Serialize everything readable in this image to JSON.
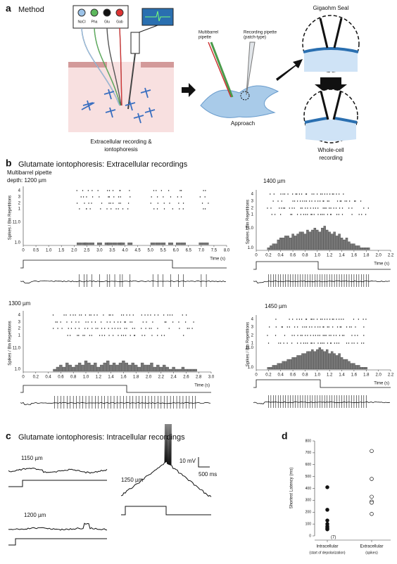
{
  "panel_a": {
    "letter": "a",
    "title": "Method",
    "barrels": [
      "NaCl",
      "Pha",
      "Glu",
      "Gab"
    ],
    "caption": [
      "Extracellular recording &",
      "iontophoresis"
    ],
    "multibarrel": [
      "Multibarrel",
      "pipette"
    ],
    "recording": [
      "Recording pipette",
      "(patch-type)"
    ],
    "approach": "Approach",
    "seal": "Gigaohm Seal",
    "whole_cell": [
      "Whole-cell",
      "recording"
    ]
  },
  "panel_b": {
    "letter": "b",
    "title": "Glutamate iontophoresis: Extracellular recordings",
    "ylabel": "Spikes / Bin  Repetitions",
    "xlabel": "Time (s)",
    "rows": [
      4,
      3,
      2,
      1
    ],
    "hist_yticks": [
      {
        "value": 11,
        "label": "11.0"
      },
      {
        "value": 1,
        "label": "1.0"
      }
    ],
    "plots": [
      {
        "label": [
          "Multibarrel pipette",
          "depth: 1200 µm"
        ],
        "xlim": [
          0,
          8
        ],
        "xticks": [
          0,
          0.5,
          {
            "value": 1,
            "label": "1.0"
          },
          1.5,
          {
            "value": 2,
            "label": "2.0"
          },
          2.5,
          {
            "value": 3,
            "label": "3.0"
          },
          3.5,
          {
            "value": 4,
            "label": "4.0"
          },
          4.5,
          {
            "value": 5,
            "label": "5.0"
          },
          5.5,
          {
            "value": 6,
            "label": "6.0"
          },
          6.5,
          {
            "value": 7,
            "label": "7.0"
          },
          7.5,
          {
            "value": 8,
            "label": "8.0"
          }
        ],
        "x": [
          2.2,
          2.4,
          2.5,
          2.7,
          3.0,
          3.3,
          3.4,
          3.6,
          3.8,
          3.9,
          4.2,
          5.1,
          5.3,
          5.5,
          5.8,
          6.1,
          6.3,
          7.0,
          7.2
        ],
        "counts": [
          1,
          1,
          1,
          1,
          1,
          1,
          1,
          1,
          1,
          1,
          1,
          1,
          1,
          1,
          1,
          1,
          1,
          1,
          1
        ]
      },
      {
        "label": [
          "1400 µm"
        ],
        "xlim": [
          0,
          2.2
        ],
        "xticks": [
          0,
          0.2,
          0.4,
          0.6,
          0.8,
          {
            "value": 1,
            "label": "1.0"
          },
          1.2,
          1.4,
          1.6,
          1.8,
          {
            "value": 2,
            "label": "2.0"
          },
          2.2
        ],
        "x": [
          0.2,
          0.24,
          0.28,
          0.32,
          0.36,
          0.4,
          0.44,
          0.48,
          0.52,
          0.56,
          0.6,
          0.64,
          0.68,
          0.72,
          0.76,
          0.8,
          0.84,
          0.88,
          0.92,
          0.96,
          1.0,
          1.04,
          1.08,
          1.12,
          1.16,
          1.2,
          1.24,
          1.28,
          1.32,
          1.36,
          1.4,
          1.44,
          1.48,
          1.52,
          1.56,
          1.6,
          1.64,
          1.68,
          1.72,
          1.76,
          1.8,
          1.84
        ],
        "counts": [
          1,
          2,
          3,
          3,
          5,
          6,
          6,
          7,
          7,
          6,
          8,
          7,
          8,
          9,
          9,
          8,
          10,
          9,
          10,
          11,
          10,
          9,
          11,
          12,
          10,
          9,
          8,
          9,
          7,
          8,
          6,
          5,
          6,
          4,
          3,
          3,
          2,
          2,
          1,
          1,
          1,
          1
        ]
      },
      {
        "label": [
          "1300 µm"
        ],
        "xlim": [
          0,
          3
        ],
        "xticks": [
          0,
          0.2,
          0.4,
          0.6,
          0.8,
          {
            "value": 1,
            "label": "1.0"
          },
          1.2,
          1.4,
          1.6,
          1.8,
          {
            "value": 2,
            "label": "2.0"
          },
          2.2,
          2.4,
          2.6,
          2.8,
          {
            "value": 3,
            "label": "3.0"
          }
        ],
        "x": [
          0.5,
          0.55,
          0.6,
          0.65,
          0.7,
          0.75,
          0.8,
          0.85,
          0.9,
          0.95,
          1.0,
          1.05,
          1.1,
          1.15,
          1.2,
          1.25,
          1.3,
          1.35,
          1.4,
          1.45,
          1.5,
          1.55,
          1.6,
          1.65,
          1.7,
          1.75,
          1.8,
          1.85,
          1.9,
          1.95,
          2.0,
          2.05,
          2.1,
          2.15,
          2.2,
          2.25,
          2.3,
          2.35,
          2.4,
          2.45,
          2.5,
          2.55,
          2.6,
          2.65,
          2.7,
          2.75
        ],
        "counts": [
          1,
          2,
          3,
          2,
          4,
          3,
          2,
          3,
          4,
          3,
          5,
          4,
          3,
          4,
          2,
          3,
          4,
          5,
          3,
          4,
          3,
          4,
          5,
          4,
          3,
          4,
          3,
          2,
          4,
          3,
          3,
          4,
          2,
          3,
          2,
          3,
          2,
          1,
          2,
          1,
          1,
          2,
          1,
          1,
          1,
          1
        ]
      },
      {
        "label": [
          "1450 µm"
        ],
        "xlim": [
          0,
          2.2
        ],
        "xticks": [
          0,
          0.2,
          0.4,
          0.6,
          0.8,
          {
            "value": 1,
            "label": "1.0"
          },
          1.2,
          1.4,
          1.6,
          1.8,
          {
            "value": 2,
            "label": "2.0"
          },
          2.2
        ],
        "x": [
          0.2,
          0.24,
          0.28,
          0.32,
          0.36,
          0.4,
          0.44,
          0.48,
          0.52,
          0.56,
          0.6,
          0.64,
          0.68,
          0.72,
          0.76,
          0.8,
          0.84,
          0.88,
          0.92,
          0.96,
          1.0,
          1.04,
          1.08,
          1.12,
          1.16,
          1.2,
          1.24,
          1.28,
          1.32,
          1.36,
          1.4,
          1.44,
          1.48,
          1.52,
          1.56,
          1.6,
          1.64,
          1.68,
          1.72,
          1.76,
          1.8
        ],
        "counts": [
          1,
          1,
          2,
          2,
          3,
          3,
          4,
          4,
          5,
          5,
          6,
          6,
          7,
          7,
          8,
          8,
          9,
          9,
          10,
          9,
          10,
          11,
          10,
          9,
          10,
          8,
          9,
          8,
          7,
          8,
          6,
          5,
          5,
          4,
          3,
          3,
          2,
          2,
          1,
          1,
          1
        ]
      }
    ]
  },
  "panel_c": {
    "letter": "c",
    "title": "Glutamate iontophoresis: Intracellular recordings",
    "depths": [
      "1150 µm",
      "1200 µm",
      "1250 µm"
    ],
    "scale": [
      "10 mV",
      "500 ms"
    ]
  },
  "panel_d": {
    "letter": "d",
    "ylabel": "Shortest Latency (ms)",
    "ylim": [
      0,
      800
    ],
    "yticks": [
      0,
      100,
      200,
      300,
      400,
      500,
      600,
      700,
      800
    ],
    "categories": [
      {
        "name": "Intracellular",
        "note": "(start of depolarization)"
      },
      {
        "name": "Extracellular",
        "note": "(spikes)"
      }
    ],
    "series": [
      {
        "values": [
          410,
          220,
          130,
          100,
          80,
          70,
          60,
          55
        ],
        "filled": true
      },
      {
        "values": [
          715,
          480,
          330,
          290,
          280,
          185
        ],
        "filled": false
      }
    ],
    "annotation": "(7)"
  }
}
